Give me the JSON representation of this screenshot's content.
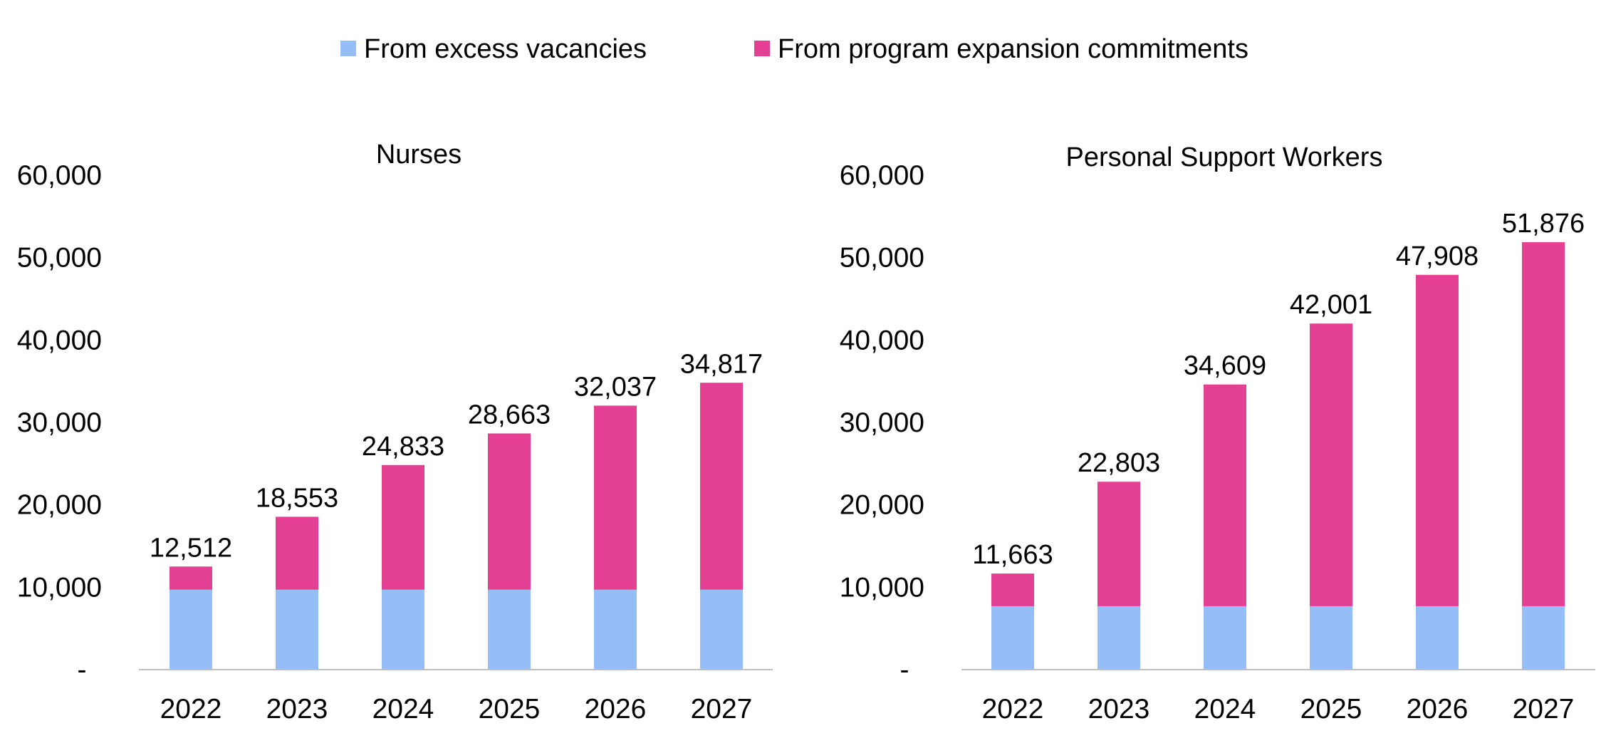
{
  "colors": {
    "excess_vacancies": "#95bdf8",
    "program_expansion": "#e33f93",
    "axis": "#bfbfbf"
  },
  "legend": {
    "position": "top-center",
    "items": [
      {
        "label": "From excess vacancies",
        "color_key": "excess_vacancies"
      },
      {
        "label": "From program expansion commitments",
        "color_key": "program_expansion"
      }
    ]
  },
  "chart_data": [
    {
      "type": "bar",
      "stacked": true,
      "title": "Nurses",
      "categories": [
        "2022",
        "2023",
        "2024",
        "2025",
        "2026",
        "2027"
      ],
      "series": [
        {
          "name": "From excess vacancies",
          "color_key": "excess_vacancies",
          "values": [
            9700,
            9700,
            9700,
            9700,
            9700,
            9700
          ]
        },
        {
          "name": "From program expansion commitments",
          "color_key": "program_expansion",
          "values": [
            2812,
            8853,
            15133,
            18963,
            22337,
            25117
          ]
        }
      ],
      "totals": [
        12512,
        18553,
        24833,
        28663,
        32037,
        34817
      ],
      "total_labels": [
        "12,512",
        "18,553",
        "24,833",
        "28,663",
        "32,037",
        "34,817"
      ],
      "ylim": [
        0,
        60000
      ],
      "yticks": [
        0,
        10000,
        20000,
        30000,
        40000,
        50000,
        60000
      ],
      "ytick_labels": [
        "-",
        "10,000",
        "20,000",
        "30,000",
        "40,000",
        "50,000",
        "60,000"
      ],
      "grid": false
    },
    {
      "type": "bar",
      "stacked": true,
      "title": "Personal Support Workers",
      "categories": [
        "2022",
        "2023",
        "2024",
        "2025",
        "2026",
        "2027"
      ],
      "series": [
        {
          "name": "From excess vacancies",
          "color_key": "excess_vacancies",
          "values": [
            7700,
            7700,
            7700,
            7700,
            7700,
            7700
          ]
        },
        {
          "name": "From program expansion commitments",
          "color_key": "program_expansion",
          "values": [
            3963,
            15103,
            26909,
            34301,
            40208,
            44176
          ]
        }
      ],
      "totals": [
        11663,
        22803,
        34609,
        42001,
        47908,
        51876
      ],
      "total_labels": [
        "11,663",
        "22,803",
        "34,609",
        "42,001",
        "47,908",
        "51,876"
      ],
      "ylim": [
        0,
        60000
      ],
      "yticks": [
        0,
        10000,
        20000,
        30000,
        40000,
        50000,
        60000
      ],
      "ytick_labels": [
        "-",
        "10,000",
        "20,000",
        "30,000",
        "40,000",
        "50,000",
        "60,000"
      ],
      "grid": false
    }
  ]
}
